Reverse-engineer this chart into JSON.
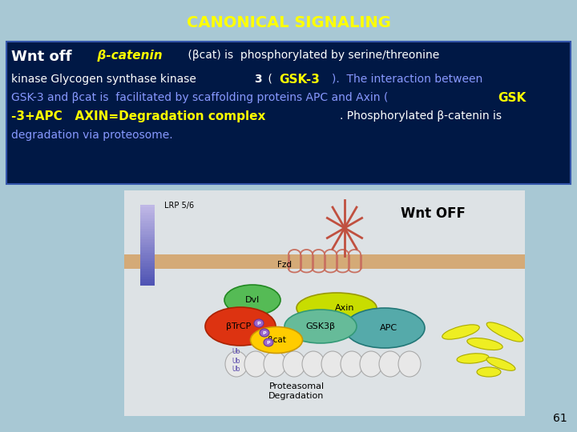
{
  "title": "CANONICAL SIGNALING",
  "title_color": "#FFFF00",
  "title_fontsize": 14,
  "bg_color": "#a8c8d4",
  "text_box_color": "#001845",
  "text_box_border": "#3355aa",
  "slide_number": "61",
  "line1_parts": [
    {
      "text": "Wnt off",
      "bold": true,
      "italic": false,
      "size": 13,
      "color": "#FFFFFF",
      "family": "sans-serif"
    },
    {
      "text": "  β-catenin",
      "bold": true,
      "italic": true,
      "size": 11,
      "color": "#FFFF00",
      "family": "sans-serif"
    },
    {
      "text": " (βcat) is  phosphorylated by serine/threonine",
      "bold": false,
      "italic": false,
      "size": 10,
      "color": "#FFFFFF",
      "family": "sans-serif"
    }
  ],
  "line2_parts": [
    {
      "text": "kinase Glycogen synthase kinase ",
      "bold": false,
      "italic": false,
      "size": 10,
      "color": "#FFFFFF",
      "family": "sans-serif"
    },
    {
      "text": "3",
      "bold": true,
      "italic": false,
      "size": 10,
      "color": "#FFFFFF",
      "family": "sans-serif"
    },
    {
      "text": " ( ",
      "bold": false,
      "italic": false,
      "size": 10,
      "color": "#FFFFFF",
      "family": "sans-serif"
    },
    {
      "text": "GSK-3",
      "bold": true,
      "italic": false,
      "size": 11,
      "color": "#FFFF00",
      "family": "sans-serif"
    },
    {
      "text": ").  The interaction between",
      "bold": false,
      "italic": false,
      "size": 10,
      "color": "#8899ff",
      "family": "sans-serif"
    }
  ],
  "line3_parts": [
    {
      "text": "GSK-3 and βcat is  facilitated by scaffolding proteins APC and Axin (",
      "bold": false,
      "italic": false,
      "size": 10,
      "color": "#8899ff",
      "family": "sans-serif"
    },
    {
      "text": "GSK",
      "bold": true,
      "italic": false,
      "size": 11,
      "color": "#FFFF00",
      "family": "sans-serif"
    }
  ],
  "line4_parts": [
    {
      "text": "-3+APC   AXIN=Degradation complex",
      "bold": true,
      "italic": false,
      "size": 11,
      "color": "#FFFF00",
      "family": "sans-serif"
    },
    {
      "text": ". Phosphorylated β-catenin is",
      "bold": false,
      "italic": false,
      "size": 10,
      "color": "#FFFFFF",
      "family": "sans-serif"
    }
  ],
  "line5_parts": [
    {
      "text": "degradation via proteosome.",
      "bold": false,
      "italic": false,
      "size": 10,
      "color": "#8899ff",
      "family": "sans-serif"
    }
  ]
}
